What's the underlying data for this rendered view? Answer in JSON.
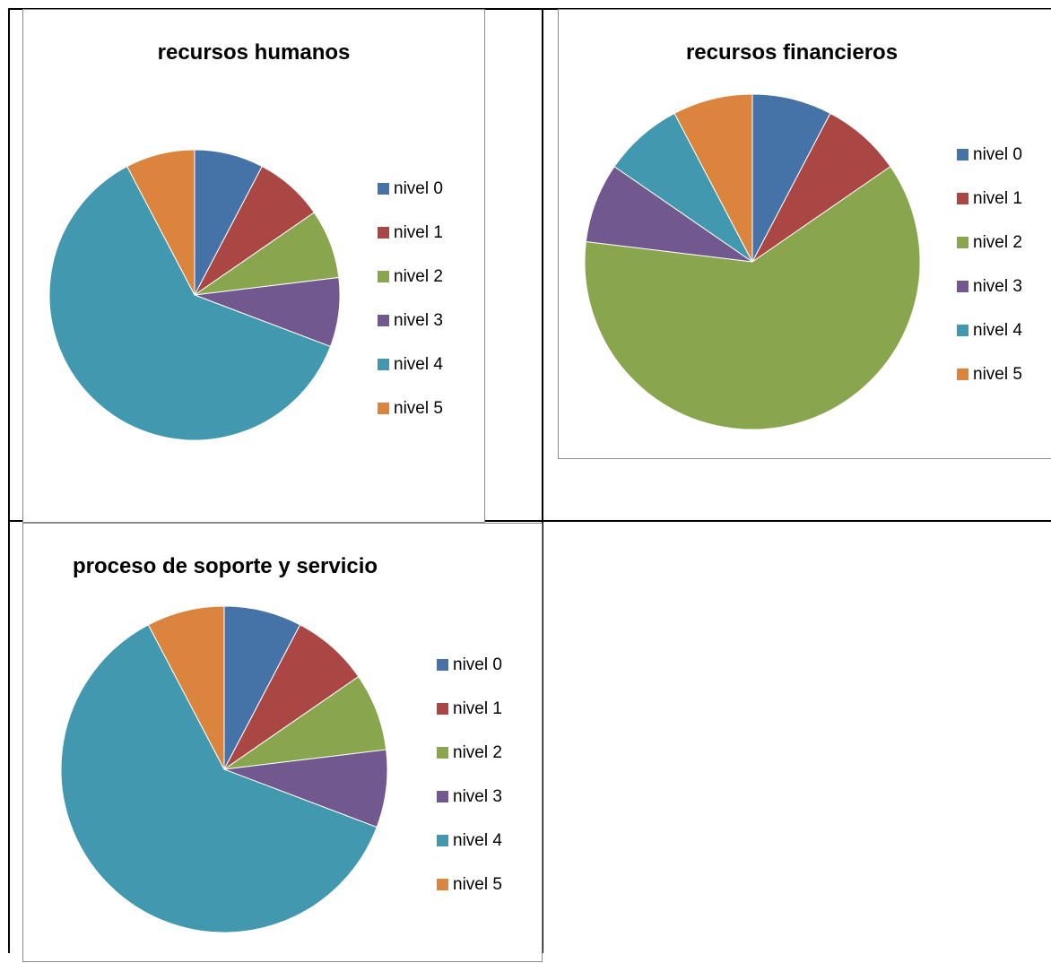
{
  "colors": {
    "nivel 0": "#4572a7",
    "nivel 1": "#aa4643",
    "nivel 2": "#89a54e",
    "nivel 3": "#71588f",
    "nivel 4": "#4198af",
    "nivel 5": "#db843d"
  },
  "chart_data": [
    {
      "type": "pie",
      "title": "recursos humanos",
      "categories": [
        "nivel 0",
        "nivel 1",
        "nivel 2",
        "nivel 3",
        "nivel 4",
        "nivel 5"
      ],
      "values": [
        1,
        1,
        1,
        1,
        8,
        1
      ],
      "legend_position": "right"
    },
    {
      "type": "pie",
      "title": "recursos financieros",
      "categories": [
        "nivel 0",
        "nivel 1",
        "nivel 2",
        "nivel 3",
        "nivel 4",
        "nivel 5"
      ],
      "values": [
        1,
        1,
        8,
        1,
        1,
        1
      ],
      "legend_position": "right"
    },
    {
      "type": "pie",
      "title": "proceso de soporte y servicio",
      "categories": [
        "nivel 0",
        "nivel 1",
        "nivel 2",
        "nivel 3",
        "nivel 4",
        "nivel 5"
      ],
      "values": [
        1,
        1,
        1,
        1,
        8,
        1
      ],
      "legend_position": "right"
    }
  ]
}
